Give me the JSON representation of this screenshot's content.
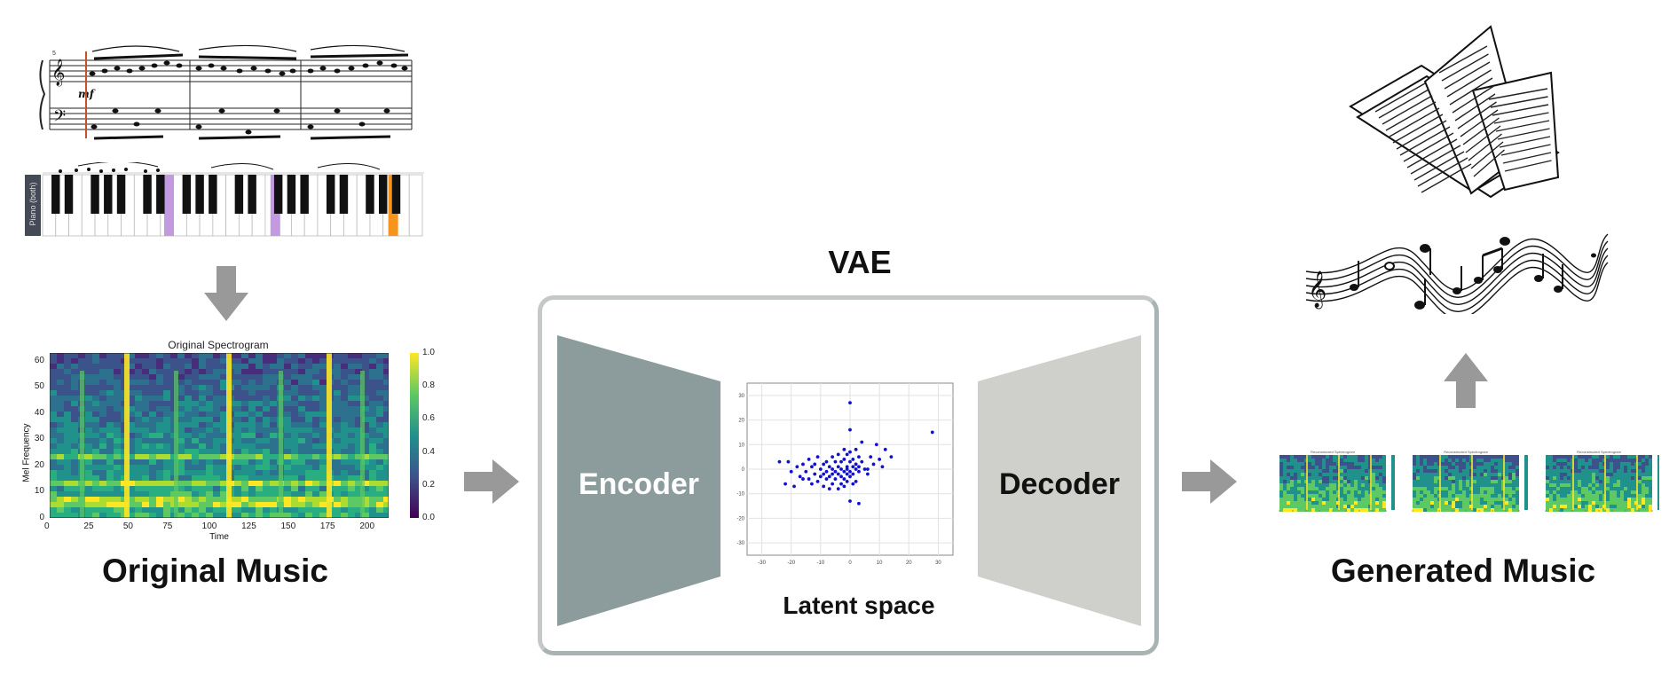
{
  "labels": {
    "original_music": "Original Music",
    "generated_music": "Generated Music",
    "vae": "VAE",
    "encoder": "Encoder",
    "decoder": "Decoder",
    "latent_space": "Latent space"
  },
  "piano_roll": {
    "track_label": "Piano (both)",
    "highlight_colors": [
      "#c39ae0",
      "#f7941d"
    ]
  },
  "spectrogram": {
    "title": "Original Spectrogram",
    "xlabel": "Time",
    "ylabel": "Mel Frequency",
    "xticks": [
      "0",
      "25",
      "50",
      "75",
      "100",
      "125",
      "150",
      "175",
      "200"
    ],
    "yticks": [
      "0",
      "10",
      "20",
      "30",
      "40",
      "50",
      "60"
    ],
    "colorbar_ticks": [
      "0.0",
      "0.2",
      "0.4",
      "0.6",
      "0.8",
      "1.0"
    ]
  },
  "chart_data": {
    "type": "scatter",
    "title": "",
    "xlabel": "",
    "ylabel": "",
    "xlim": [
      -35,
      35
    ],
    "ylim": [
      -35,
      35
    ],
    "xticks": [
      "-30",
      "-20",
      "-10",
      "0",
      "10",
      "20",
      "30"
    ],
    "yticks": [
      "30",
      "20",
      "10",
      "0",
      "-10",
      "-20",
      "-30"
    ],
    "grid": true,
    "color": "#1010d0",
    "points": [
      [
        0,
        27
      ],
      [
        0,
        16
      ],
      [
        28,
        15
      ],
      [
        4,
        11
      ],
      [
        9,
        10
      ],
      [
        12,
        8
      ],
      [
        14,
        5
      ],
      [
        10,
        4
      ],
      [
        11,
        1
      ],
      [
        6,
        0
      ],
      [
        -2,
        8
      ],
      [
        2,
        8
      ],
      [
        0,
        7
      ],
      [
        -4,
        6
      ],
      [
        -1,
        6
      ],
      [
        3,
        5
      ],
      [
        -6,
        5
      ],
      [
        -2,
        4
      ],
      [
        1,
        4
      ],
      [
        4,
        3
      ],
      [
        -8,
        3
      ],
      [
        -5,
        3
      ],
      [
        -3,
        3
      ],
      [
        0,
        3
      ],
      [
        2,
        2
      ],
      [
        -11,
        5
      ],
      [
        -14,
        4
      ],
      [
        -21,
        3
      ],
      [
        -24,
        3
      ],
      [
        -16,
        2
      ],
      [
        -12,
        2
      ],
      [
        -9,
        2
      ],
      [
        -7,
        1
      ],
      [
        -4,
        1
      ],
      [
        -1,
        1
      ],
      [
        1,
        1
      ],
      [
        3,
        1
      ],
      [
        -18,
        1
      ],
      [
        -13,
        1
      ],
      [
        -10,
        0
      ],
      [
        -6,
        0
      ],
      [
        -3,
        0
      ],
      [
        -1,
        0
      ],
      [
        2,
        0
      ],
      [
        5,
        0
      ],
      [
        -20,
        -1
      ],
      [
        -15,
        -1
      ],
      [
        -8,
        -1
      ],
      [
        -5,
        -1
      ],
      [
        -2,
        -1
      ],
      [
        0,
        -1
      ],
      [
        3,
        -1
      ],
      [
        -12,
        -2
      ],
      [
        -9,
        -2
      ],
      [
        -6,
        -2
      ],
      [
        -4,
        -2
      ],
      [
        -1,
        -2
      ],
      [
        1,
        -2
      ],
      [
        -17,
        -3
      ],
      [
        -10,
        -3
      ],
      [
        -7,
        -3
      ],
      [
        -3,
        -3
      ],
      [
        0,
        -3
      ],
      [
        -14,
        -4
      ],
      [
        -8,
        -4
      ],
      [
        -5,
        -4
      ],
      [
        -2,
        -4
      ],
      [
        -22,
        -6
      ],
      [
        -19,
        -7
      ],
      [
        -11,
        -5
      ],
      [
        -6,
        -6
      ],
      [
        -3,
        -6
      ],
      [
        -1,
        -5
      ],
      [
        1,
        -6
      ],
      [
        -9,
        -7
      ],
      [
        -4,
        -8
      ],
      [
        -7,
        -8
      ],
      [
        -2,
        -7
      ],
      [
        2,
        -5
      ],
      [
        0,
        -13
      ],
      [
        3,
        -14
      ],
      [
        -13,
        -6
      ],
      [
        -16,
        -4
      ],
      [
        6,
        -2
      ],
      [
        8,
        2
      ],
      [
        7,
        5
      ]
    ]
  },
  "generated_spectrograms": [
    "Reconstructed Spectrogram",
    "Reconstructed Spectrogram",
    "Reconstructed Spectrogram"
  ]
}
